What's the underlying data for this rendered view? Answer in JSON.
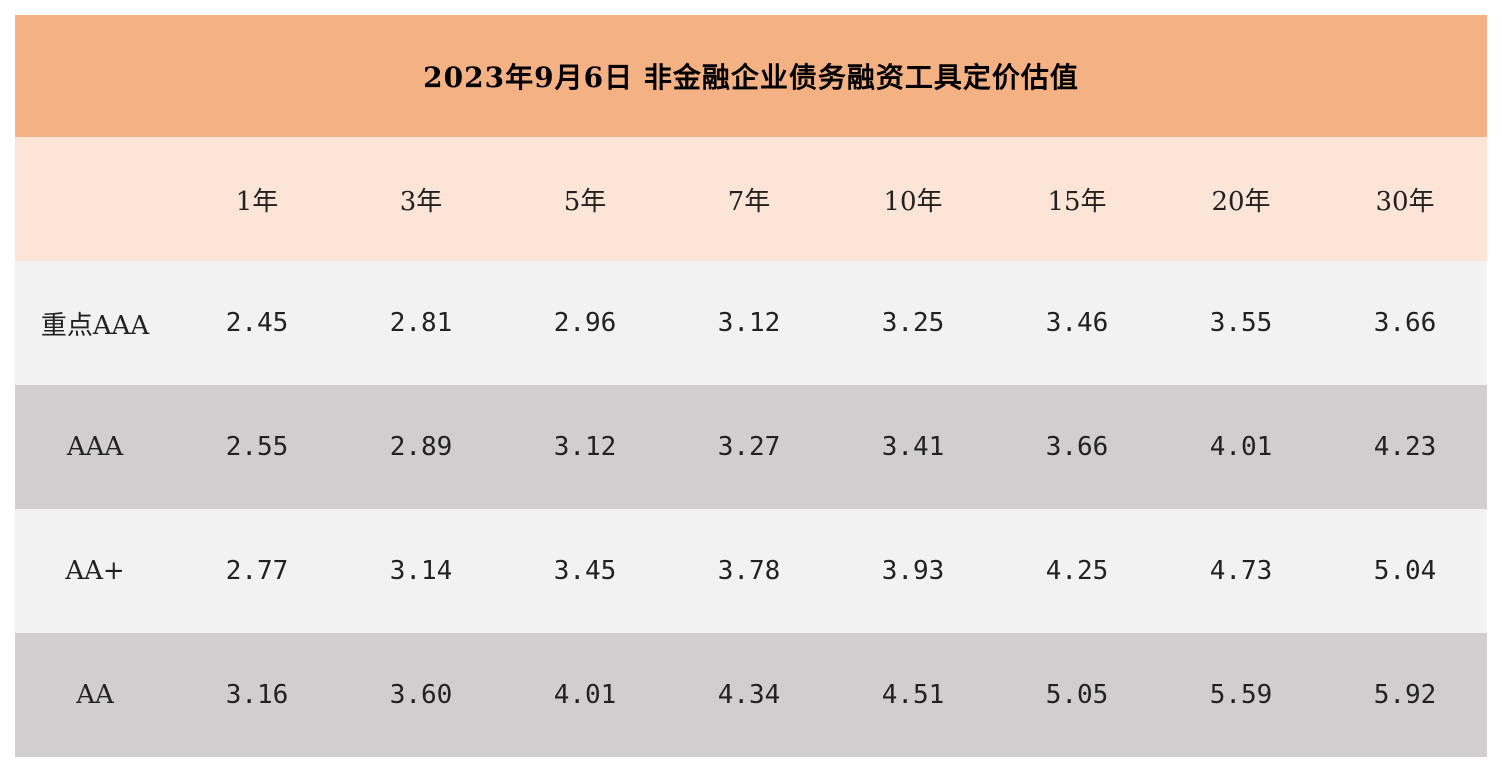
{
  "title": "2023年9月6日  非金融企业债务融资工具定价估值",
  "header": {
    "corner": "",
    "terms": [
      "1年",
      "3年",
      "5年",
      "7年",
      "10年",
      "15年",
      "20年",
      "30年"
    ]
  },
  "rows": [
    {
      "rating": "重点AAA",
      "values": [
        "2.45",
        "2.81",
        "2.96",
        "3.12",
        "3.25",
        "3.46",
        "3.55",
        "3.66"
      ]
    },
    {
      "rating": "AAA",
      "values": [
        "2.55",
        "2.89",
        "3.12",
        "3.27",
        "3.41",
        "3.66",
        "4.01",
        "4.23"
      ]
    },
    {
      "rating": "AA+",
      "values": [
        "2.77",
        "3.14",
        "3.45",
        "3.78",
        "3.93",
        "4.25",
        "4.73",
        "5.04"
      ]
    },
    {
      "rating": "AA",
      "values": [
        "3.16",
        "3.60",
        "4.01",
        "4.34",
        "4.51",
        "5.05",
        "5.59",
        "5.92"
      ]
    }
  ],
  "colors": {
    "title_bg": "#F4B183",
    "header_bg": "#FCE4D6",
    "row_light": "#F2F2F2",
    "row_dark": "#D0CECE"
  }
}
